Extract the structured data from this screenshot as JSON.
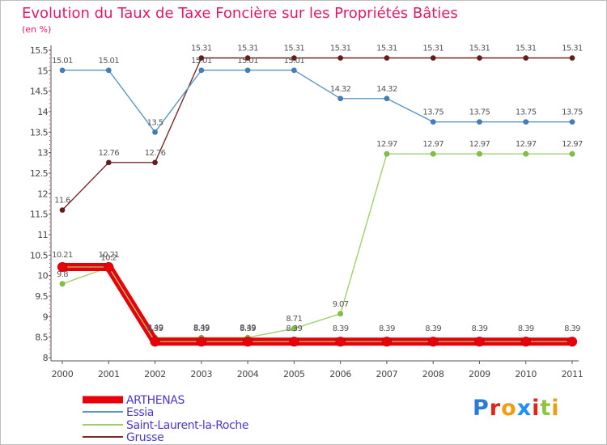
{
  "title": "Evolution du Taux de Taxe Foncière sur les Propriétés Bâties",
  "unit_label": "(en %)",
  "logo": {
    "text": "Proxiti",
    "colors": [
      "#2a7bd6",
      "#e2231a",
      "#f39c12",
      "#1e90ff",
      "#e2231a",
      "#8cc63f",
      "#f39c12"
    ]
  },
  "chart_data": {
    "type": "line",
    "title": "Evolution du Taux de Taxe Foncière sur les Propriétés Bâties",
    "ylabel": "(en %)",
    "xlabel": "",
    "x": [
      "2000",
      "2001",
      "2002",
      "2003",
      "2004",
      "2005",
      "2006",
      "2007",
      "2008",
      "2009",
      "2010",
      "2011"
    ],
    "ylim": [
      8,
      15.5
    ],
    "yticks": [
      "8",
      "8.5",
      "9",
      "9.5",
      "10",
      "10.5",
      "11",
      "11.5",
      "12",
      "12.5",
      "13",
      "13.5",
      "14",
      "14.5",
      "15",
      "15.5"
    ],
    "series": [
      {
        "name": "ARTHENAS",
        "color": "#e8000b",
        "values": [
          10.21,
          10.21,
          8.39,
          8.39,
          8.39,
          8.39,
          8.39,
          8.39,
          8.39,
          8.39,
          8.39,
          8.39
        ],
        "labels": [
          "10.21",
          "10.21",
          "8.39",
          "8.39",
          "8.39",
          "8.39",
          "8.39",
          "8.39",
          "8.39",
          "8.39",
          "8.39",
          "8.39"
        ]
      },
      {
        "name": "Essia",
        "color": "#5a96c8",
        "values": [
          15.01,
          15.01,
          13.5,
          15.01,
          15.01,
          15.01,
          14.32,
          14.32,
          13.75,
          13.75,
          13.75,
          13.75
        ],
        "labels": [
          "15.01",
          "15.01",
          "13.5",
          "15.01",
          "15.01",
          "15.01",
          "14.32",
          "14.32",
          "13.75",
          "13.75",
          "13.75",
          "13.75"
        ]
      },
      {
        "name": "Saint-Laurent-la-Roche",
        "color": "#9fd16a",
        "values": [
          9.8,
          10.2,
          8.49,
          8.49,
          8.49,
          8.71,
          9.07,
          12.97,
          12.97,
          12.97,
          12.97,
          12.97
        ],
        "labels": [
          "9.8",
          "10.2",
          "8.49",
          "8.49",
          "8.49",
          "8.71",
          "9.07",
          "12.97",
          "12.97",
          "12.97",
          "12.97",
          "12.97"
        ]
      },
      {
        "name": "Grusse",
        "color": "#7a2a2a",
        "values": [
          11.6,
          12.76,
          12.76,
          15.31,
          15.31,
          15.31,
          15.31,
          15.31,
          15.31,
          15.31,
          15.31,
          15.31
        ],
        "labels": [
          "11.6",
          "12.76",
          "12.76",
          "15.31",
          "15.31",
          "15.31",
          "15.31",
          "15.31",
          "15.31",
          "15.31",
          "15.31",
          "15.31"
        ]
      }
    ],
    "legend": [
      "ARTHENAS",
      "Essia",
      "Saint-Laurent-la-Roche",
      "Grusse"
    ],
    "legend_position": "bottom-left",
    "grid": false
  }
}
